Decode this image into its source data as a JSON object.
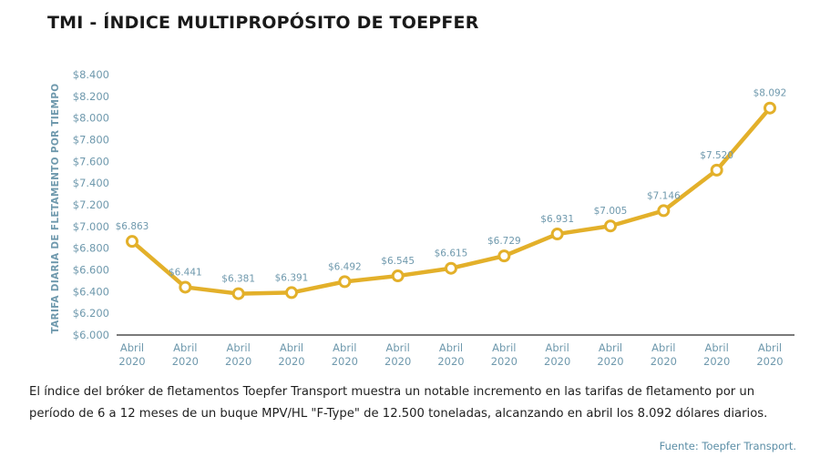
{
  "title": "TMI - ÍNDICE MULTIPROPÓSITO DE TOEPFER",
  "caption": "El índice del bróker de fletamentos Toepfer Transport muestra un notable incremento en las tarifas de fletamento por un período de 6 a 12 meses de un buque MPV/HL \"F-Type\" de 12.500 toneladas, alcanzando en abril los 8.092 dólares diarios.",
  "source": "Fuente: Toepfer Transport.",
  "colors": {
    "line": "#e3b02a",
    "axis_text": "#6f99ad",
    "axis_line": "#2b2b2b"
  },
  "chart_data": {
    "type": "line",
    "title": "TMI - ÍNDICE MULTIPROPÓSITO DE TOEPFER",
    "xlabel": "",
    "ylabel": "TARIFA DIARIA DE FLETAMENTO POR TIEMPO",
    "categories": [
      [
        "Abril",
        "2020"
      ],
      [
        "Abril",
        "2020"
      ],
      [
        "Abril",
        "2020"
      ],
      [
        "Abril",
        "2020"
      ],
      [
        "Abril",
        "2020"
      ],
      [
        "Abril",
        "2020"
      ],
      [
        "Abril",
        "2020"
      ],
      [
        "Abril",
        "2020"
      ],
      [
        "Abril",
        "2020"
      ],
      [
        "Abril",
        "2020"
      ],
      [
        "Abril",
        "2020"
      ],
      [
        "Abril",
        "2020"
      ],
      [
        "Abril",
        "2020"
      ]
    ],
    "values": [
      6863,
      6441,
      6381,
      6391,
      6492,
      6545,
      6615,
      6729,
      6931,
      7005,
      7146,
      7520,
      8092
    ],
    "value_labels": [
      "$6.863",
      "$6.441",
      "$6.381",
      "$6.391",
      "$6.492",
      "$6.545",
      "$6.615",
      "$6.729",
      "$6.931",
      "$7.005",
      "$7.146",
      "$7.520",
      "$8.092"
    ],
    "ylim": [
      6000,
      8400
    ],
    "yticks": [
      6000,
      6200,
      6400,
      6600,
      6800,
      7000,
      7200,
      7400,
      7600,
      7800,
      8000,
      8200,
      8400
    ],
    "ytick_labels": [
      "$6.000",
      "$6.200",
      "$6.400",
      "$6.600",
      "$6.800",
      "$7.000",
      "$7.200",
      "$7.400",
      "$7.600",
      "$7.800",
      "$8.000",
      "$8.200",
      "$8.400"
    ],
    "grid": false,
    "markers": "hollow-circle"
  }
}
